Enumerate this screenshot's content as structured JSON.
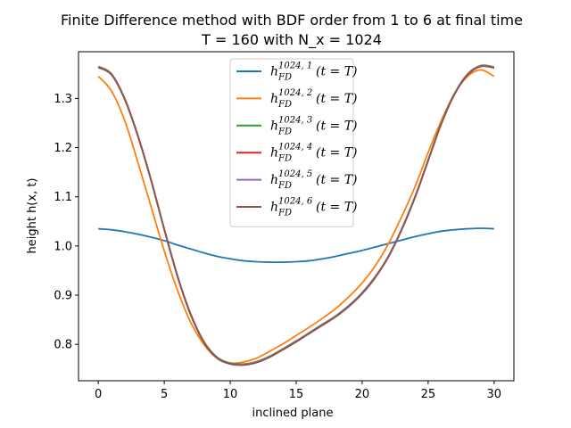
{
  "chart_data": {
    "type": "line",
    "title_lines": [
      "Finite Difference method with BDF order from 1 to 6 at final time",
      "T = 160 with N_x = 1024"
    ],
    "xlabel": "inclined plane",
    "ylabel": "height h(x, t)",
    "xlim": [
      -1.5,
      31.5
    ],
    "ylim": [
      0.726,
      1.395
    ],
    "xticks": [
      0,
      5,
      10,
      15,
      20,
      25,
      30
    ],
    "yticks": [
      0.8,
      0.9,
      1.0,
      1.1,
      1.2,
      1.3
    ],
    "xtick_labels": [
      "0",
      "5",
      "10",
      "15",
      "20",
      "25",
      "30"
    ],
    "ytick_labels": [
      "0.8",
      "0.9",
      "1.0",
      "1.1",
      "1.2",
      "1.3"
    ],
    "grid": false,
    "legend_position": "top-center",
    "series": [
      {
        "name": "h_FD^{1024,1}(t = T)",
        "color": "#1f77b4",
        "x": [
          0,
          1,
          2,
          3,
          4,
          5,
          6,
          7,
          8,
          9,
          10,
          11,
          12,
          13,
          14,
          15,
          16,
          17,
          18,
          19,
          20,
          21,
          22,
          23,
          24,
          25,
          26,
          27,
          28,
          29,
          30
        ],
        "y": [
          1.035,
          1.033,
          1.029,
          1.024,
          1.018,
          1.011,
          1.002,
          0.994,
          0.986,
          0.979,
          0.974,
          0.97,
          0.968,
          0.967,
          0.967,
          0.968,
          0.97,
          0.974,
          0.979,
          0.985,
          0.991,
          0.998,
          1.005,
          1.012,
          1.019,
          1.025,
          1.03,
          1.033,
          1.035,
          1.036,
          1.035
        ]
      },
      {
        "name": "h_FD^{1024,2}(t = T)",
        "color": "#ff7f0e",
        "x": [
          0,
          1,
          2,
          3,
          4,
          5,
          6,
          7,
          8,
          9,
          10,
          11,
          12,
          13,
          14,
          15,
          16,
          17,
          18,
          19,
          20,
          21,
          22,
          23,
          24,
          25,
          26,
          27,
          28,
          29,
          30
        ],
        "y": [
          1.345,
          1.315,
          1.255,
          1.17,
          1.08,
          0.99,
          0.91,
          0.845,
          0.8,
          0.772,
          0.762,
          0.764,
          0.772,
          0.786,
          0.801,
          0.818,
          0.835,
          0.853,
          0.873,
          0.897,
          0.925,
          0.96,
          1.005,
          1.06,
          1.12,
          1.19,
          1.255,
          1.31,
          1.345,
          1.358,
          1.345
        ]
      },
      {
        "name": "h_FD^{1024,3}(t = T)",
        "color": "#2ca02c",
        "x": [
          0,
          1,
          2,
          3,
          4,
          5,
          6,
          7,
          8,
          9,
          10,
          11,
          12,
          13,
          14,
          15,
          16,
          17,
          18,
          19,
          20,
          21,
          22,
          23,
          24,
          25,
          26,
          27,
          28,
          29,
          30
        ],
        "y": [
          1.365,
          1.35,
          1.3,
          1.225,
          1.135,
          1.035,
          0.94,
          0.862,
          0.806,
          0.774,
          0.762,
          0.76,
          0.765,
          0.776,
          0.791,
          0.807,
          0.824,
          0.841,
          0.858,
          0.879,
          0.905,
          0.938,
          0.98,
          1.035,
          1.1,
          1.175,
          1.25,
          1.31,
          1.35,
          1.367,
          1.364
        ]
      },
      {
        "name": "h_FD^{1024,4}(t = T)",
        "color": "#d62728",
        "x": [
          0,
          1,
          2,
          3,
          4,
          5,
          6,
          7,
          8,
          9,
          10,
          11,
          12,
          13,
          14,
          15,
          16,
          17,
          18,
          19,
          20,
          21,
          22,
          23,
          24,
          25,
          26,
          27,
          28,
          29,
          30
        ],
        "y": [
          1.364,
          1.349,
          1.299,
          1.224,
          1.134,
          1.034,
          0.939,
          0.861,
          0.805,
          0.773,
          0.761,
          0.759,
          0.764,
          0.775,
          0.79,
          0.806,
          0.823,
          0.84,
          0.857,
          0.878,
          0.904,
          0.937,
          0.979,
          1.034,
          1.099,
          1.174,
          1.249,
          1.309,
          1.349,
          1.366,
          1.363
        ]
      },
      {
        "name": "h_FD^{1024,5}(t = T)",
        "color": "#9467bd",
        "x": [
          0,
          1,
          2,
          3,
          4,
          5,
          6,
          7,
          8,
          9,
          10,
          11,
          12,
          13,
          14,
          15,
          16,
          17,
          18,
          19,
          20,
          21,
          22,
          23,
          24,
          25,
          26,
          27,
          28,
          29,
          30
        ],
        "y": [
          1.364,
          1.349,
          1.299,
          1.224,
          1.134,
          1.034,
          0.939,
          0.861,
          0.805,
          0.773,
          0.761,
          0.759,
          0.764,
          0.775,
          0.79,
          0.806,
          0.823,
          0.84,
          0.857,
          0.878,
          0.904,
          0.937,
          0.979,
          1.034,
          1.099,
          1.174,
          1.249,
          1.309,
          1.349,
          1.366,
          1.363
        ]
      },
      {
        "name": "h_FD^{1024,6}(t = T)",
        "color": "#8c564b",
        "x": [
          0,
          1,
          2,
          3,
          4,
          5,
          6,
          7,
          8,
          9,
          10,
          11,
          12,
          13,
          14,
          15,
          16,
          17,
          18,
          19,
          20,
          21,
          22,
          23,
          24,
          25,
          26,
          27,
          28,
          29,
          30
        ],
        "y": [
          1.363,
          1.348,
          1.298,
          1.223,
          1.133,
          1.033,
          0.938,
          0.86,
          0.804,
          0.772,
          0.76,
          0.758,
          0.763,
          0.774,
          0.789,
          0.805,
          0.822,
          0.839,
          0.856,
          0.877,
          0.903,
          0.936,
          0.978,
          1.033,
          1.098,
          1.173,
          1.248,
          1.308,
          1.348,
          1.365,
          1.362
        ]
      }
    ],
    "legend_entries": [
      {
        "base": "h",
        "sub": "FD",
        "sup": "1024, 1",
        "tail": "(t = T)"
      },
      {
        "base": "h",
        "sub": "FD",
        "sup": "1024, 2",
        "tail": "(t = T)"
      },
      {
        "base": "h",
        "sub": "FD",
        "sup": "1024, 3",
        "tail": "(t = T)"
      },
      {
        "base": "h",
        "sub": "FD",
        "sup": "1024, 4",
        "tail": "(t = T)"
      },
      {
        "base": "h",
        "sub": "FD",
        "sup": "1024, 5",
        "tail": "(t = T)"
      },
      {
        "base": "h",
        "sub": "FD",
        "sup": "1024, 6",
        "tail": "(t = T)"
      }
    ]
  }
}
